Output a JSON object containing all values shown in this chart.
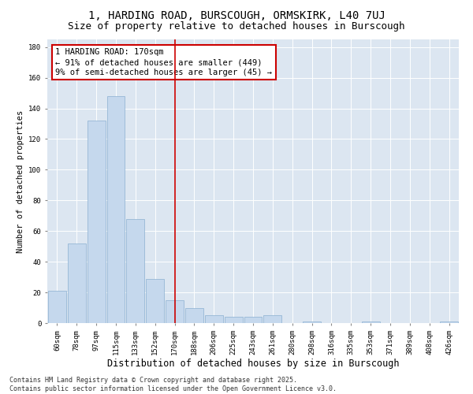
{
  "title1": "1, HARDING ROAD, BURSCOUGH, ORMSKIRK, L40 7UJ",
  "title2": "Size of property relative to detached houses in Burscough",
  "xlabel": "Distribution of detached houses by size in Burscough",
  "ylabel": "Number of detached properties",
  "categories": [
    "60sqm",
    "78sqm",
    "97sqm",
    "115sqm",
    "133sqm",
    "152sqm",
    "170sqm",
    "188sqm",
    "206sqm",
    "225sqm",
    "243sqm",
    "261sqm",
    "280sqm",
    "298sqm",
    "316sqm",
    "335sqm",
    "353sqm",
    "371sqm",
    "389sqm",
    "408sqm",
    "426sqm"
  ],
  "values": [
    21,
    52,
    132,
    148,
    68,
    29,
    15,
    10,
    5,
    4,
    4,
    5,
    0,
    1,
    0,
    0,
    1,
    0,
    0,
    0,
    1
  ],
  "bar_color": "#c5d8ed",
  "bar_edge_color": "#8ab0d0",
  "property_line_x": 6,
  "property_line_color": "#cc0000",
  "annotation_text": "1 HARDING ROAD: 170sqm\n← 91% of detached houses are smaller (449)\n9% of semi-detached houses are larger (45) →",
  "annotation_box_color": "#cc0000",
  "ylim": [
    0,
    185
  ],
  "yticks": [
    0,
    20,
    40,
    60,
    80,
    100,
    120,
    140,
    160,
    180
  ],
  "bg_color": "#ffffff",
  "plot_bg_color": "#dce6f1",
  "grid_color": "#ffffff",
  "footer": "Contains HM Land Registry data © Crown copyright and database right 2025.\nContains public sector information licensed under the Open Government Licence v3.0.",
  "title1_fontsize": 10,
  "title2_fontsize": 9,
  "xlabel_fontsize": 8.5,
  "ylabel_fontsize": 7.5,
  "tick_fontsize": 6.5,
  "annotation_fontsize": 7.5,
  "footer_fontsize": 6
}
